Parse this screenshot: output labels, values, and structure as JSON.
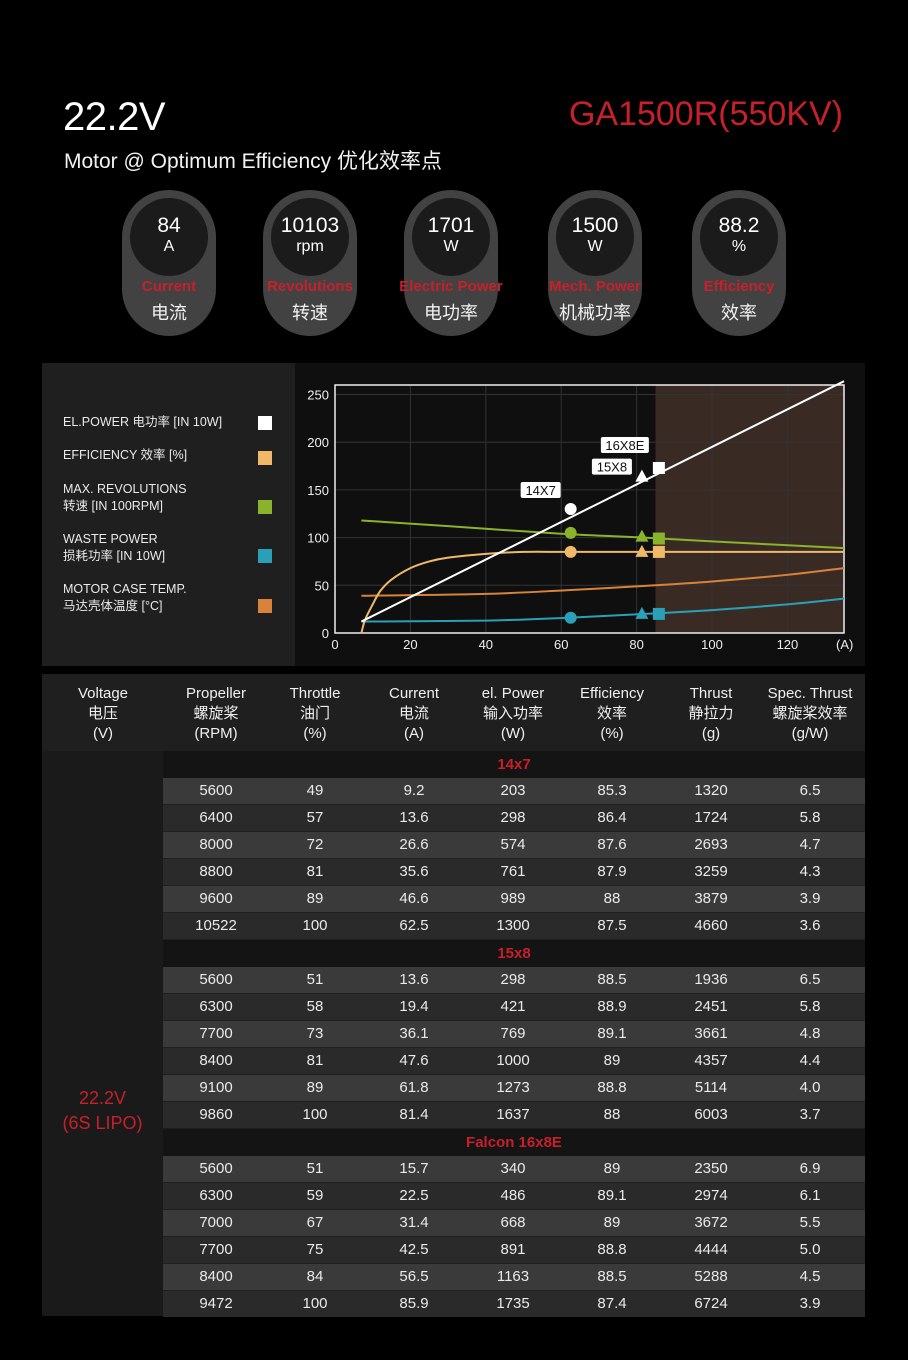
{
  "header": {
    "voltage": "22.2V",
    "subtitle": "Motor @ Optimum Efficiency  优化效率点",
    "model": "GA1500R(550KV)"
  },
  "stats": [
    {
      "value": "84",
      "unit": "A",
      "label_en": "Current",
      "label_cn": "电流"
    },
    {
      "value": "10103",
      "unit": "rpm",
      "label_en": "Revolutions",
      "label_cn": "转速"
    },
    {
      "value": "1701",
      "unit": "W",
      "label_en": "Electric Power",
      "label_cn": "电功率"
    },
    {
      "value": "1500",
      "unit": "W",
      "label_en": "Mech. Power",
      "label_cn": "机械功率"
    },
    {
      "value": "88.2",
      "unit": "%",
      "label_en": "Efficiency",
      "label_cn": "效率"
    }
  ],
  "legend": [
    {
      "line1": "EL.POWER 电功率 [IN 10W]",
      "line2": "",
      "color": "#ffffff"
    },
    {
      "line1": "EFFICIENCY 效率 [%]",
      "line2": "",
      "color": "#f0b96a"
    },
    {
      "line1": "MAX. REVOLUTIONS",
      "line2": "转速 [IN 100RPM]",
      "color": "#8ab32b"
    },
    {
      "line1": "WASTE POWER",
      "line2": "损耗功率 [IN 10W]",
      "color": "#2aa0b8"
    },
    {
      "line1": "MOTOR CASE TEMP.",
      "line2": "马达壳体温度 [°C]",
      "color": "#d9823a"
    }
  ],
  "chart_data": {
    "type": "line",
    "xlabel": "(A)",
    "xlim": [
      0,
      135
    ],
    "ylim": [
      0,
      260
    ],
    "xticks": [
      0,
      20,
      40,
      60,
      80,
      100,
      120
    ],
    "yticks": [
      0,
      50,
      100,
      150,
      200,
      250
    ],
    "shaded_from_x": 85,
    "series": [
      {
        "name": "EL.POWER 电功率 [IN 10W]",
        "color": "#ffffff",
        "x": [
          7,
          135
        ],
        "y": [
          12,
          264
        ]
      },
      {
        "name": "EFFICIENCY 效率 [%]",
        "color": "#f0b96a",
        "x": [
          7,
          8,
          10,
          12,
          15,
          20,
          25,
          30,
          40,
          50,
          60,
          70,
          85,
          100,
          120,
          135
        ],
        "y": [
          0,
          14,
          30,
          44,
          56,
          68,
          75,
          79,
          83,
          85,
          85,
          85,
          85,
          85,
          85,
          85
        ]
      },
      {
        "name": "MAX. REVOLUTIONS 转速 [IN 100RPM]",
        "color": "#8ab32b",
        "x": [
          7,
          30,
          60,
          82,
          100,
          135
        ],
        "y": [
          118,
          112,
          104,
          100,
          96,
          89
        ]
      },
      {
        "name": "WASTE POWER 损耗功率 [IN 10W]",
        "color": "#2aa0b8",
        "x": [
          7,
          40,
          62,
          82,
          100,
          120,
          135
        ],
        "y": [
          12,
          13,
          16,
          20,
          24,
          30,
          36
        ]
      },
      {
        "name": "MOTOR CASE TEMP. 马达壳体温度 [°C]",
        "color": "#d9823a",
        "x": [
          7,
          40,
          62,
          85,
          100,
          120,
          135
        ],
        "y": [
          39,
          41,
          45,
          50,
          54,
          61,
          68
        ]
      }
    ],
    "markers": [
      {
        "label": "14X7",
        "x": 62.5,
        "shape": "circle",
        "values": {
          "power": 130,
          "efficiency": 85,
          "rpm": 105,
          "waste": 16
        }
      },
      {
        "label": "15X8",
        "x": 81.4,
        "shape": "triangle",
        "values": {
          "power": 164,
          "efficiency": 85,
          "rpm": 101,
          "waste": 20
        }
      },
      {
        "label": "16X8E",
        "x": 85.9,
        "shape": "square",
        "values": {
          "power": 173,
          "efficiency": 85,
          "rpm": 99,
          "waste": 20
        }
      }
    ]
  },
  "table": {
    "headers": [
      [
        "Voltage",
        "电压",
        "(V)"
      ],
      [
        "Propeller",
        "螺旋桨",
        "(RPM)"
      ],
      [
        "Throttle",
        "油门",
        "(%)"
      ],
      [
        "Current",
        "电流",
        "(A)"
      ],
      [
        "el. Power",
        "输入功率",
        "(W)"
      ],
      [
        "Efficiency",
        "效率",
        "(%)"
      ],
      [
        "Thrust",
        "静拉力",
        "(g)"
      ],
      [
        "Spec. Thrust",
        "螺旋桨效率",
        "(g/W)"
      ]
    ],
    "voltage_line1": "22.2V",
    "voltage_line2": "(6S LIPO)",
    "groups": [
      {
        "name": "14x7",
        "rows": [
          [
            "5600",
            "49",
            "9.2",
            "203",
            "85.3",
            "1320",
            "6.5"
          ],
          [
            "6400",
            "57",
            "13.6",
            "298",
            "86.4",
            "1724",
            "5.8"
          ],
          [
            "8000",
            "72",
            "26.6",
            "574",
            "87.6",
            "2693",
            "4.7"
          ],
          [
            "8800",
            "81",
            "35.6",
            "761",
            "87.9",
            "3259",
            "4.3"
          ],
          [
            "9600",
            "89",
            "46.6",
            "989",
            "88",
            "3879",
            "3.9"
          ],
          [
            "10522",
            "100",
            "62.5",
            "1300",
            "87.5",
            "4660",
            "3.6"
          ]
        ]
      },
      {
        "name": "15x8",
        "rows": [
          [
            "5600",
            "51",
            "13.6",
            "298",
            "88.5",
            "1936",
            "6.5"
          ],
          [
            "6300",
            "58",
            "19.4",
            "421",
            "88.9",
            "2451",
            "5.8"
          ],
          [
            "7700",
            "73",
            "36.1",
            "769",
            "89.1",
            "3661",
            "4.8"
          ],
          [
            "8400",
            "81",
            "47.6",
            "1000",
            "89",
            "4357",
            "4.4"
          ],
          [
            "9100",
            "89",
            "61.8",
            "1273",
            "88.8",
            "5114",
            "4.0"
          ],
          [
            "9860",
            "100",
            "81.4",
            "1637",
            "88",
            "6003",
            "3.7"
          ]
        ]
      },
      {
        "name": "Falcon 16x8E",
        "rows": [
          [
            "5600",
            "51",
            "15.7",
            "340",
            "89",
            "2350",
            "6.9"
          ],
          [
            "6300",
            "59",
            "22.5",
            "486",
            "89.1",
            "2974",
            "6.1"
          ],
          [
            "7000",
            "67",
            "31.4",
            "668",
            "89",
            "3672",
            "5.5"
          ],
          [
            "7700",
            "75",
            "42.5",
            "891",
            "88.8",
            "4444",
            "5.0"
          ],
          [
            "8400",
            "84",
            "56.5",
            "1163",
            "88.5",
            "5288",
            "4.5"
          ],
          [
            "9472",
            "100",
            "85.9",
            "1735",
            "87.4",
            "6724",
            "3.9"
          ]
        ]
      }
    ]
  }
}
